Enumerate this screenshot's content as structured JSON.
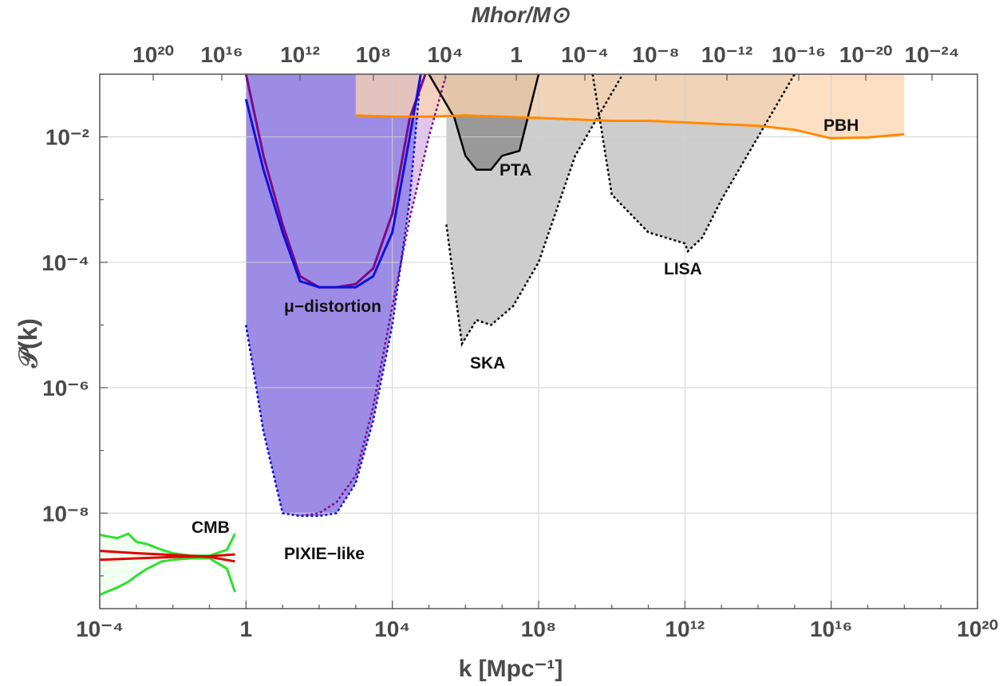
{
  "chart_data": {
    "type": "area",
    "x_scale": "log10",
    "y_scale": "log10",
    "xlim": [
      0.0001,
      1e+20
    ],
    "ylim": [
      3e-10,
      0.1
    ],
    "grid": true,
    "xlabel": "k [Mpc⁻¹]",
    "ylabel": "𝒫(k)",
    "top_axis_label": "Mhor/M⊙",
    "x_tick_labels": [
      "10⁻⁴",
      "1",
      "10⁴",
      "10⁸",
      "10¹²",
      "10¹⁶",
      "10²⁰"
    ],
    "y_tick_labels": [
      "10⁻⁸",
      "10⁻⁶",
      "10⁻⁴",
      "10⁻²"
    ],
    "top_tick_labels": [
      "10²⁰",
      "10¹⁶",
      "10¹²",
      "10⁸",
      "10⁴",
      "1",
      "10⁻⁴",
      "10⁻⁸",
      "10⁻¹²",
      "10⁻¹⁶",
      "10⁻²⁰",
      "10⁻²⁴"
    ],
    "annotations": {
      "cmb": "CMB",
      "pixie": "PIXIE−like",
      "mu": "μ−distortion",
      "ska": "SKA",
      "pta": "PTA",
      "lisa": "LISA",
      "pbh": "PBH"
    },
    "colors": {
      "mu_fill": "#9d8ce6",
      "pixie_fill": "#ddc0e8",
      "gw_fill": "#c8c8c8",
      "pbh_fill": "#fcd4b0",
      "pbh_line": "#ff8a00",
      "cmb_red": "#e00000",
      "cmb_green": "#2ee02e",
      "blue": "#1010dd",
      "purple": "#7a0a86"
    },
    "series": [
      {
        "key": "cmb_red_upper",
        "x": [
          0.0001,
          0.001,
          0.01,
          0.1,
          0.5
        ],
        "y": [
          2.5e-09,
          2.3e-09,
          2.15e-09,
          2e-09,
          1.7e-09
        ]
      },
      {
        "key": "cmb_red_lower",
        "x": [
          0.0001,
          0.001,
          0.01,
          0.1,
          0.5
        ],
        "y": [
          1.8e-09,
          1.9e-09,
          2e-09,
          2.05e-09,
          2.2e-09
        ]
      },
      {
        "key": "cmb_green_upper",
        "x": [
          0.0001,
          0.0003,
          0.0006,
          0.001,
          0.002,
          0.005,
          0.01,
          0.03,
          0.1,
          0.3,
          0.5
        ],
        "y": [
          4.5e-09,
          4e-09,
          4.7e-09,
          3.5e-09,
          3.2e-09,
          2.6e-09,
          2.3e-09,
          2.1e-09,
          2.1e-09,
          2.6e-09,
          4.7e-09
        ]
      },
      {
        "key": "cmb_green_lower",
        "x": [
          0.0001,
          0.0003,
          0.0006,
          0.001,
          0.002,
          0.005,
          0.01,
          0.03,
          0.1,
          0.3,
          0.5
        ],
        "y": [
          5e-10,
          6.5e-10,
          8e-10,
          1e-09,
          1.3e-09,
          1.7e-09,
          1.8e-09,
          1.9e-09,
          1.9e-09,
          1.3e-09,
          5.5e-10
        ]
      },
      {
        "key": "pbh",
        "x": [
          1000,
          10000,
          100000,
          1000000.0,
          10000000.0,
          100000000.0,
          1000000000.0,
          10000000000.0,
          100000000000.0,
          1000000000000.0,
          10000000000000.0,
          100000000000000.0,
          1000000000000000.0,
          1e+16,
          1e+17,
          1e+18
        ],
        "y": [
          0.022,
          0.021,
          0.021,
          0.022,
          0.021,
          0.02,
          0.019,
          0.018,
          0.018,
          0.017,
          0.016,
          0.015,
          0.013,
          0.0095,
          0.0098,
          0.011
        ]
      },
      {
        "key": "pta",
        "x": [
          100000,
          500000,
          1000000.0,
          2000000.0,
          5000000.0,
          10000000.0,
          30000000.0,
          100000000.0
        ],
        "y": [
          0.1,
          0.02,
          0.005,
          0.003,
          0.003,
          0.005,
          0.006,
          0.1
        ]
      },
      {
        "key": "ska",
        "x": [
          300000,
          800000,
          2000000.0,
          5000000.0,
          20000000.0,
          100000000.0,
          1000000000.0,
          20000000000.0
        ],
        "y": [
          0.0004,
          5e-06,
          1.2e-05,
          1e-05,
          2e-05,
          0.0001,
          0.005,
          0.1
        ]
      },
      {
        "key": "lisa",
        "x": [
          3000000000.0,
          10000000000.0,
          100000000000.0,
          1000000000000.0,
          1200000000000.0,
          3000000000000.0,
          10000000000000.0,
          100000000000000.0,
          1000000000000000.0
        ],
        "y": [
          0.1,
          0.0012,
          0.0003,
          0.0002,
          0.00015,
          0.00025,
          0.001,
          0.01,
          0.1
        ]
      },
      {
        "key": "mu_blue",
        "x": [
          1,
          3,
          10,
          30,
          100,
          300,
          1000,
          3000,
          10000,
          30000,
          60000
        ],
        "y": [
          0.04,
          0.003,
          0.0003,
          5e-05,
          4e-05,
          4e-05,
          4e-05,
          6e-05,
          0.0003,
          0.01,
          0.1
        ]
      },
      {
        "key": "mu_purple",
        "x": [
          1,
          3,
          10,
          30,
          100,
          300,
          1000,
          3000,
          10000,
          30000,
          80000
        ],
        "y": [
          0.1,
          0.005,
          0.0004,
          6e-05,
          4e-05,
          4e-05,
          4.5e-05,
          8e-05,
          0.0006,
          0.02,
          0.1
        ]
      },
      {
        "key": "pixie_blue",
        "x": [
          1,
          3,
          10,
          30,
          100,
          300,
          1000,
          3000,
          10000,
          30000,
          60000
        ],
        "y": [
          1e-05,
          2e-07,
          1e-08,
          9e-09,
          9e-09,
          1e-08,
          3e-08,
          3e-07,
          1e-05,
          0.001,
          0.1
        ]
      },
      {
        "key": "pixie_purple",
        "x": [
          1,
          3,
          10,
          30,
          100,
          300,
          1000,
          3000,
          10000,
          30000,
          100000,
          300000
        ],
        "y": [
          1e-05,
          2e-07,
          1e-08,
          9e-09,
          1e-08,
          1.5e-08,
          4e-08,
          5e-07,
          2e-05,
          0.0005,
          0.01,
          0.1
        ]
      }
    ]
  }
}
